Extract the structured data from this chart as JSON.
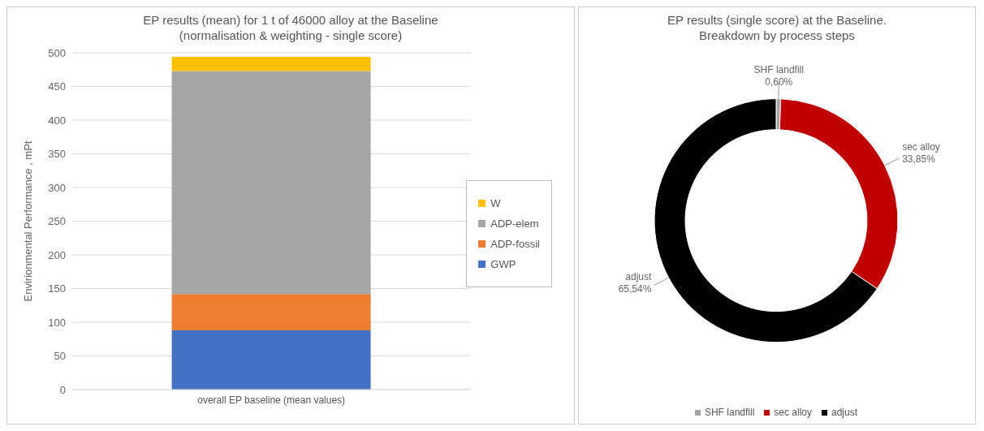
{
  "chart_data": [
    {
      "type": "bar",
      "title": "EP results (mean) for 1 t of 46000 alloy at the Baseline\n(normalisation & weighting - single score)",
      "ylabel": "Envirionmental Performance , mPt",
      "categories": [
        "overall EP baseline (mean values)"
      ],
      "stacked": true,
      "ylim": [
        0,
        500
      ],
      "yticks": [
        0,
        50,
        100,
        150,
        200,
        250,
        300,
        350,
        400,
        450,
        500
      ],
      "grid": "y",
      "legend": "right",
      "series": [
        {
          "name": "GWP",
          "color": "#4472c4",
          "values": [
            88
          ]
        },
        {
          "name": "ADP-fossil",
          "color": "#ed7d31",
          "values": [
            54
          ]
        },
        {
          "name": "ADP-elem",
          "color": "#a5a5a5",
          "values": [
            331
          ]
        },
        {
          "name": "W",
          "color": "#ffc000",
          "values": [
            21
          ]
        }
      ]
    },
    {
      "type": "donut",
      "title": "EP results (single score) at the Baseline.\nBreakdown by process steps",
      "categories": [
        "SHF landfill",
        "sec alloy",
        "adjust"
      ],
      "values": [
        0.6,
        33.85,
        65.54
      ],
      "colors": [
        "#a5a5a5",
        "#c00000",
        "#000000"
      ],
      "value_labels": [
        "0,60%",
        "33,85%",
        "65,54%"
      ],
      "legend": "bottom"
    }
  ]
}
